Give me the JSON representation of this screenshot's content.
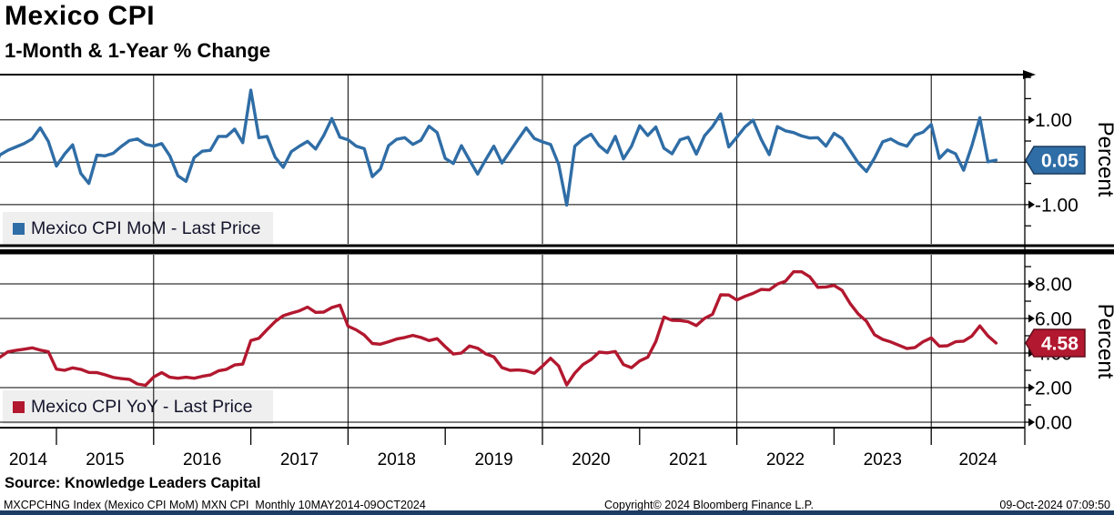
{
  "header": {
    "title": "Mexico CPI",
    "subtitle": "1-Month & 1-Year % Change"
  },
  "legends": [
    {
      "label": "Mexico CPI MoM - Last Price",
      "color": "#2f6da6"
    },
    {
      "label": "Mexico CPI YoY - Last Price",
      "color": "#b2182f"
    }
  ],
  "x_axis": {
    "year_labels": [
      "2014",
      "2015",
      "2016",
      "2017",
      "2018",
      "2019",
      "2020",
      "2021",
      "2022",
      "2023",
      "2024"
    ],
    "grid_years": [
      "2016",
      "2018",
      "2020",
      "2022",
      "2024"
    ]
  },
  "chart_data": [
    {
      "panel": "top",
      "type": "line",
      "series_id": "mom",
      "title": "Mexico CPI MoM - Last Price",
      "color": "#2f6da6",
      "badge_border": "#1a3a5c",
      "x_start": "2014-05",
      "x_end": "2024-09",
      "frequency": "monthly",
      "ylabel": "Percent",
      "ylim": [
        -1.925,
        2.066
      ],
      "ytick_minor_step": 0.5,
      "yticks": [
        {
          "v": 1.0,
          "label": "1.00"
        },
        {
          "v": 0.0,
          "label": "0.00"
        },
        {
          "v": -1.0,
          "label": "-1.00"
        }
      ],
      "last_price": 0.05,
      "last_price_label": "0.05",
      "values": [
        -0.32,
        0.17,
        0.28,
        0.36,
        0.44,
        0.55,
        0.81,
        0.49,
        -0.09,
        0.19,
        0.41,
        -0.26,
        -0.5,
        0.17,
        0.15,
        0.21,
        0.37,
        0.51,
        0.55,
        0.42,
        0.38,
        0.44,
        0.15,
        -0.32,
        -0.45,
        0.11,
        0.26,
        0.28,
        0.61,
        0.61,
        0.78,
        0.46,
        1.7,
        0.58,
        0.61,
        0.12,
        -0.12,
        0.25,
        0.38,
        0.49,
        0.31,
        0.63,
        1.03,
        0.59,
        0.53,
        0.38,
        0.32,
        -0.34,
        -0.16,
        0.39,
        0.54,
        0.58,
        0.42,
        0.52,
        0.85,
        0.7,
        0.09,
        -0.03,
        0.39,
        0.05,
        -0.28,
        0.06,
        0.38,
        -0.02,
        0.26,
        0.54,
        0.81,
        0.56,
        0.48,
        0.42,
        -0.05,
        -1.01,
        0.38,
        0.55,
        0.66,
        0.39,
        0.23,
        0.61,
        0.08,
        0.38,
        0.86,
        0.63,
        0.83,
        0.33,
        0.2,
        0.53,
        0.59,
        0.19,
        0.62,
        0.84,
        1.14,
        0.36,
        0.59,
        0.83,
        0.99,
        0.54,
        0.18,
        0.84,
        0.74,
        0.7,
        0.62,
        0.57,
        0.58,
        0.38,
        0.68,
        0.56,
        0.27,
        -0.02,
        -0.22,
        0.1,
        0.48,
        0.55,
        0.44,
        0.38,
        0.64,
        0.71,
        0.89,
        0.09,
        0.29,
        0.2,
        -0.19,
        0.38,
        1.05,
        0.01,
        0.05
      ]
    },
    {
      "panel": "bottom",
      "type": "line",
      "series_id": "yoy",
      "title": "Mexico CPI YoY - Last Price",
      "color": "#b2182f",
      "badge_border": "#5f0d1c",
      "x_start": "2014-05",
      "x_end": "2024-09",
      "frequency": "monthly",
      "ylabel": "Percent",
      "ylim": [
        -0.316,
        9.684
      ],
      "ytick_minor_step": 1,
      "yticks": [
        {
          "v": 8,
          "label": "8.00"
        },
        {
          "v": 6,
          "label": "6.00"
        },
        {
          "v": 4,
          "label": "4.00"
        },
        {
          "v": 2,
          "label": "2.00"
        },
        {
          "v": 0,
          "label": "0.00"
        }
      ],
      "last_price": 4.58,
      "last_price_label": "4.58",
      "values": [
        3.51,
        3.75,
        4.07,
        4.15,
        4.22,
        4.3,
        4.17,
        4.08,
        3.07,
        3.0,
        3.14,
        3.06,
        2.88,
        2.87,
        2.74,
        2.59,
        2.52,
        2.48,
        2.21,
        2.13,
        2.61,
        2.87,
        2.6,
        2.54,
        2.6,
        2.54,
        2.65,
        2.73,
        2.97,
        3.06,
        3.31,
        3.36,
        4.72,
        4.86,
        5.35,
        5.82,
        6.16,
        6.31,
        6.44,
        6.66,
        6.35,
        6.37,
        6.63,
        6.77,
        5.55,
        5.34,
        5.04,
        4.55,
        4.51,
        4.65,
        4.81,
        4.9,
        5.02,
        4.9,
        4.72,
        4.83,
        4.37,
        3.94,
        4.0,
        4.41,
        4.28,
        3.95,
        3.78,
        3.16,
        3.0,
        3.02,
        2.97,
        2.83,
        3.24,
        3.7,
        3.25,
        2.15,
        2.84,
        3.33,
        3.62,
        4.05,
        4.01,
        4.09,
        3.33,
        3.15,
        3.54,
        3.76,
        4.67,
        6.08,
        5.89,
        5.88,
        5.81,
        5.59,
        6.0,
        6.24,
        7.37,
        7.36,
        7.07,
        7.28,
        7.45,
        7.68,
        7.65,
        7.99,
        8.15,
        8.7,
        8.7,
        8.41,
        7.8,
        7.82,
        7.91,
        7.62,
        6.85,
        6.25,
        5.84,
        5.06,
        4.79,
        4.64,
        4.45,
        4.26,
        4.32,
        4.66,
        4.88,
        4.4,
        4.42,
        4.65,
        4.69,
        4.98,
        5.57,
        4.99,
        4.58
      ]
    }
  ],
  "footer": {
    "source": "Source: Knowledge Leaders Capital",
    "left": "MXCPCHNG Index (Mexico CPI MoM) MXN CPI  Monthly 10MAY2014-09OCT2024",
    "center": "Copyright© 2024 Bloomberg Finance L.P.",
    "right": "09-Oct-2024 07:09:50"
  }
}
